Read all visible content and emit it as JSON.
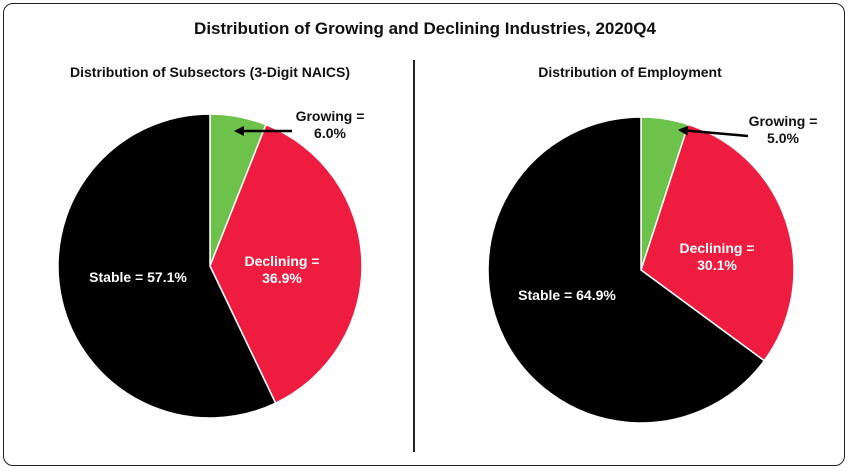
{
  "title": "Distribution of Growing and Declining Industries, 2020Q4",
  "colors": {
    "growing": "#6cc24a",
    "declining": "#ee1c3f",
    "stable": "#000000"
  },
  "chart_data": [
    {
      "type": "pie",
      "title": "Distribution of Subsectors (3-Digit NAICS)",
      "slices": [
        {
          "name": "Growing",
          "value": 6.0,
          "label_line1": "Growing =",
          "label_line2": "6.0%"
        },
        {
          "name": "Declining",
          "value": 36.9,
          "label_line1": "Declining =",
          "label_line2": "36.9%"
        },
        {
          "name": "Stable",
          "value": 57.1,
          "label_line1": "Stable = 57.1%"
        }
      ]
    },
    {
      "type": "pie",
      "title": "Distribution of Employment",
      "slices": [
        {
          "name": "Growing",
          "value": 5.0,
          "label_line1": "Growing =",
          "label_line2": "5.0%"
        },
        {
          "name": "Declining",
          "value": 30.1,
          "label_line1": "Declining =",
          "label_line2": "30.1%"
        },
        {
          "name": "Stable",
          "value": 64.9,
          "label_line1": "Stable = 64.9%"
        }
      ]
    }
  ]
}
